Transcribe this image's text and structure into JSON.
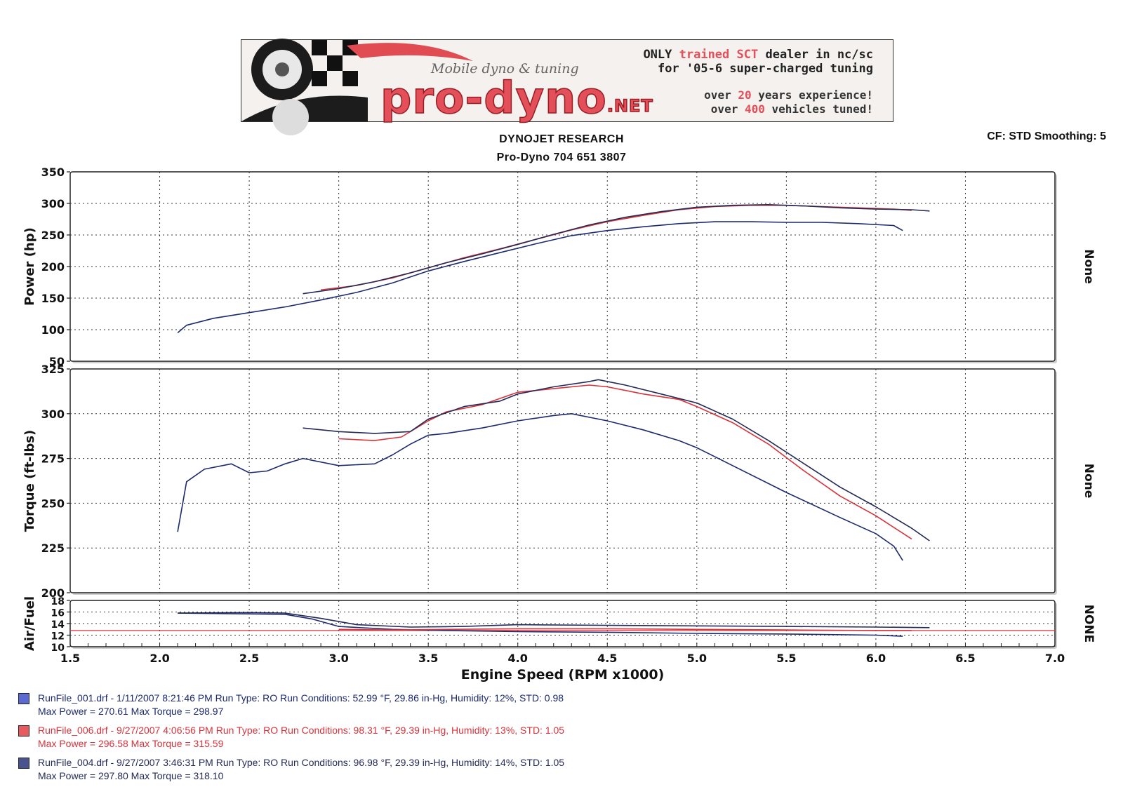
{
  "banner": {
    "script_text": "Mobile dyno & tuning",
    "logo_main": "pro-dyno",
    "logo_suffix": ".NET",
    "line1_a": "ONLY ",
    "line1_b": "trained ",
    "line1_c": "SCT",
    "line1_d": " dealer in nc/sc",
    "line2": "for '05-6 super-charged tuning",
    "line3_a": "over ",
    "line3_b": "20",
    "line3_c": " years experience!",
    "line4_a": "over ",
    "line4_b": "400",
    "line4_c": " vehicles tuned!"
  },
  "header": {
    "title": "DYNOJET RESEARCH",
    "subtitle": "Pro-Dyno 704 651 3807",
    "settings": "CF: STD  Smoothing: 5"
  },
  "colors": {
    "run1": "#1c2a6e",
    "run2": "#d8323a",
    "run3": "#222a55",
    "afr_reference": "#d8323a",
    "grid": "#333333"
  },
  "chart_data": [
    {
      "type": "line",
      "ylabel": "Power (hp)",
      "right_label": "None",
      "ylim": [
        50,
        350
      ],
      "yticks": [
        50,
        100,
        150,
        200,
        250,
        300,
        350
      ],
      "xlim": [
        1.5,
        7.0
      ],
      "series": [
        {
          "name": "RunFile_001.drf",
          "color": "#1c2a6e",
          "x": [
            2.1,
            2.15,
            2.3,
            2.5,
            2.7,
            2.9,
            3.1,
            3.3,
            3.5,
            3.7,
            3.9,
            4.1,
            4.3,
            4.5,
            4.7,
            4.9,
            5.1,
            5.3,
            5.5,
            5.7,
            5.9,
            6.1,
            6.15
          ],
          "values": [
            95,
            107,
            118,
            127,
            136,
            147,
            159,
            174,
            193,
            208,
            222,
            236,
            249,
            257,
            263,
            268,
            271,
            271,
            270,
            270,
            268,
            265,
            257
          ]
        },
        {
          "name": "RunFile_006.drf",
          "color": "#d8323a",
          "x": [
            2.9,
            3.1,
            3.3,
            3.5,
            3.7,
            3.9,
            4.1,
            4.3,
            4.5,
            4.7,
            4.9,
            5.1,
            5.3,
            5.5,
            5.7,
            5.9,
            6.1,
            6.2
          ],
          "values": [
            163,
            170,
            182,
            198,
            214,
            228,
            243,
            258,
            271,
            281,
            290,
            295,
            297,
            297,
            295,
            293,
            291,
            289
          ]
        },
        {
          "name": "RunFile_004.drf",
          "color": "#222a55",
          "x": [
            2.8,
            3.0,
            3.2,
            3.4,
            3.6,
            3.8,
            4.0,
            4.2,
            4.4,
            4.6,
            4.8,
            5.0,
            5.2,
            5.4,
            5.6,
            5.8,
            6.0,
            6.2,
            6.3
          ],
          "values": [
            157,
            165,
            176,
            190,
            206,
            220,
            235,
            251,
            266,
            278,
            287,
            294,
            297,
            298,
            296,
            293,
            291,
            290,
            288
          ]
        }
      ]
    },
    {
      "type": "line",
      "ylabel": "Torque (ft-lbs)",
      "right_label": "None",
      "ylim": [
        200,
        325
      ],
      "yticks": [
        200,
        225,
        250,
        275,
        300,
        325
      ],
      "xlim": [
        1.5,
        7.0
      ],
      "series": [
        {
          "name": "RunFile_001.drf",
          "color": "#1c2a6e",
          "x": [
            2.1,
            2.15,
            2.25,
            2.4,
            2.5,
            2.6,
            2.7,
            2.8,
            3.0,
            3.2,
            3.3,
            3.4,
            3.5,
            3.6,
            3.8,
            4.0,
            4.2,
            4.3,
            4.5,
            4.7,
            4.9,
            5.0,
            5.2,
            5.5,
            5.8,
            6.0,
            6.1,
            6.15
          ],
          "values": [
            234,
            262,
            269,
            272,
            267,
            268,
            272,
            275,
            271,
            272,
            277,
            283,
            288,
            289,
            292,
            296,
            299,
            300,
            296,
            291,
            285,
            281,
            271,
            256,
            242,
            233,
            226,
            218
          ]
        },
        {
          "name": "RunFile_006.drf",
          "color": "#d8323a",
          "x": [
            3.0,
            3.2,
            3.35,
            3.5,
            3.6,
            3.8,
            4.0,
            4.2,
            4.4,
            4.5,
            4.7,
            4.9,
            5.0,
            5.2,
            5.4,
            5.6,
            5.8,
            6.0,
            6.2
          ],
          "values": [
            286,
            285,
            287,
            296,
            301,
            305,
            312,
            314,
            316,
            315,
            311,
            308,
            304,
            295,
            283,
            268,
            254,
            243,
            230
          ]
        },
        {
          "name": "RunFile_004.drf",
          "color": "#222a55",
          "x": [
            2.8,
            3.0,
            3.2,
            3.4,
            3.5,
            3.7,
            3.9,
            4.0,
            4.2,
            4.4,
            4.45,
            4.6,
            4.8,
            5.0,
            5.2,
            5.4,
            5.6,
            5.8,
            6.0,
            6.2,
            6.3
          ],
          "values": [
            292,
            290,
            289,
            290,
            297,
            304,
            307,
            311,
            315,
            318,
            319,
            316,
            311,
            306,
            297,
            285,
            272,
            259,
            248,
            236,
            229
          ]
        }
      ]
    },
    {
      "type": "line",
      "ylabel": "Air/Fuel",
      "right_label": "NONE",
      "xlabel": "Engine Speed (RPM x1000)",
      "ylim": [
        10,
        18
      ],
      "yticks": [
        10,
        12,
        14,
        16,
        18
      ],
      "xlim": [
        1.5,
        7.0
      ],
      "xticks": [
        1.5,
        2.0,
        2.5,
        3.0,
        3.5,
        4.0,
        4.5,
        5.0,
        5.5,
        6.0,
        6.5,
        7.0
      ],
      "reference_line": 12.8,
      "series": [
        {
          "name": "RunFile_001.drf",
          "color": "#1c2a6e",
          "x": [
            2.1,
            2.4,
            2.7,
            2.85,
            3.0,
            3.3,
            3.6,
            4.0,
            4.5,
            5.0,
            5.5,
            6.0,
            6.15
          ],
          "values": [
            15.8,
            15.7,
            15.6,
            14.8,
            13.5,
            13.0,
            12.8,
            12.6,
            12.5,
            12.3,
            12.2,
            12.0,
            11.8
          ]
        },
        {
          "name": "RunFile_006.drf",
          "color": "#d8323a",
          "x": [
            3.0,
            3.3,
            3.6,
            4.0,
            4.5,
            5.0,
            5.5,
            6.0,
            6.2
          ],
          "values": [
            13.0,
            12.9,
            13.0,
            13.1,
            13.1,
            13.0,
            12.9,
            12.8,
            12.8
          ]
        },
        {
          "name": "RunFile_004.drf",
          "color": "#222a55",
          "x": [
            2.1,
            2.5,
            2.7,
            2.9,
            3.1,
            3.4,
            3.7,
            4.0,
            4.5,
            5.0,
            5.5,
            6.0,
            6.3
          ],
          "values": [
            15.8,
            15.9,
            15.8,
            14.9,
            13.8,
            13.4,
            13.5,
            13.8,
            13.7,
            13.6,
            13.5,
            13.4,
            13.3
          ]
        }
      ]
    }
  ],
  "legend": [
    {
      "line1": "RunFile_001.drf - 1/11/2007 8:21:46 PM  Run Type: RO  Run Conditions: 52.99 °F, 29.86 in-Hg,  Humidity:  12%, STD: 0.98",
      "line2": "Max Power = 270.61  Max Torque = 298.97",
      "color": "#1c2a6e",
      "swatch": "#5a6ad0"
    },
    {
      "line1": "RunFile_006.drf - 9/27/2007 4:06:56 PM  Run Type: RO  Run Conditions: 98.31 °F, 29.39 in-Hg,  Humidity:  13%, STD: 1.05",
      "line2": "Max Power = 296.58  Max Torque = 315.59",
      "color": "#d8323a",
      "swatch": "#e85a60"
    },
    {
      "line1": "RunFile_004.drf - 9/27/2007 3:46:31 PM  Run Type: RO  Run Conditions: 96.98 °F, 29.39 in-Hg,  Humidity:  14%, STD: 1.05",
      "line2": "Max Power = 297.80  Max Torque = 318.10",
      "color": "#222a55",
      "swatch": "#4a5290"
    }
  ]
}
